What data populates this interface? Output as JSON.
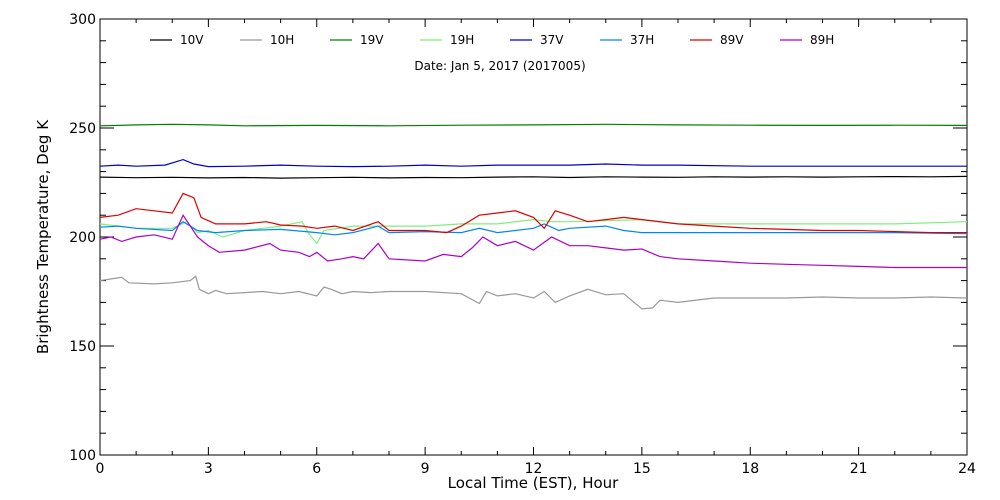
{
  "chart_data": {
    "type": "line",
    "title": "",
    "annotation": "Date: Jan  5, 2017 (2017005)",
    "xlabel": "Local Time (EST), Hour",
    "ylabel": "Brightness Temperature, Deg K",
    "xlim": [
      0,
      24
    ],
    "ylim": [
      100,
      300
    ],
    "xticks": [
      0,
      3,
      6,
      9,
      12,
      15,
      18,
      21,
      24
    ],
    "yticks": [
      100,
      150,
      200,
      250,
      300
    ],
    "grid": false,
    "legend_position": "top",
    "series": [
      {
        "name": "10V",
        "color": "#000000",
        "points": [
          [
            0,
            227.5
          ],
          [
            1,
            227.2
          ],
          [
            2,
            227.4
          ],
          [
            3,
            227.1
          ],
          [
            4,
            227.3
          ],
          [
            5,
            227.0
          ],
          [
            6,
            227.2
          ],
          [
            7,
            227.4
          ],
          [
            8,
            227.1
          ],
          [
            9,
            227.3
          ],
          [
            10,
            227.2
          ],
          [
            11,
            227.5
          ],
          [
            12,
            227.6
          ],
          [
            13,
            227.3
          ],
          [
            14,
            227.6
          ],
          [
            15,
            227.5
          ],
          [
            16,
            227.4
          ],
          [
            17,
            227.6
          ],
          [
            18,
            227.5
          ],
          [
            19,
            227.6
          ],
          [
            20,
            227.5
          ],
          [
            21,
            227.6
          ],
          [
            22,
            227.7
          ],
          [
            23,
            227.6
          ],
          [
            24,
            227.8
          ]
        ]
      },
      {
        "name": "10H",
        "color": "#999999",
        "points": [
          [
            0,
            180
          ],
          [
            0.6,
            181.5
          ],
          [
            0.8,
            179
          ],
          [
            1.5,
            178.5
          ],
          [
            2,
            179
          ],
          [
            2.5,
            180
          ],
          [
            2.65,
            182
          ],
          [
            2.75,
            176
          ],
          [
            3,
            174
          ],
          [
            3.2,
            175.5
          ],
          [
            3.5,
            174
          ],
          [
            4,
            174.5
          ],
          [
            4.5,
            175
          ],
          [
            5,
            174
          ],
          [
            5.5,
            175
          ],
          [
            6,
            173
          ],
          [
            6.2,
            177
          ],
          [
            6.4,
            176
          ],
          [
            6.7,
            174
          ],
          [
            7,
            175
          ],
          [
            7.5,
            174.5
          ],
          [
            8,
            175
          ],
          [
            9,
            175
          ],
          [
            10,
            174
          ],
          [
            10.5,
            169.5
          ],
          [
            10.7,
            175
          ],
          [
            11,
            173
          ],
          [
            11.5,
            174
          ],
          [
            12,
            172
          ],
          [
            12.3,
            175
          ],
          [
            12.6,
            170
          ],
          [
            13,
            173
          ],
          [
            13.5,
            176
          ],
          [
            14,
            173.5
          ],
          [
            14.5,
            174
          ],
          [
            15,
            167
          ],
          [
            15.3,
            167.5
          ],
          [
            15.5,
            171
          ],
          [
            16,
            170
          ],
          [
            17,
            172
          ],
          [
            18,
            172
          ],
          [
            19,
            172
          ],
          [
            20,
            172.5
          ],
          [
            21,
            172
          ],
          [
            22,
            172
          ],
          [
            23,
            172.5
          ],
          [
            24,
            172
          ]
        ]
      },
      {
        "name": "19V",
        "color": "#008000",
        "points": [
          [
            0,
            251
          ],
          [
            1,
            251.4
          ],
          [
            2,
            251.7
          ],
          [
            3,
            251.4
          ],
          [
            4,
            251
          ],
          [
            6,
            251.2
          ],
          [
            8,
            251
          ],
          [
            10,
            251.3
          ],
          [
            12,
            251.4
          ],
          [
            14,
            251.7
          ],
          [
            16,
            251.4
          ],
          [
            18,
            251.3
          ],
          [
            20,
            251.2
          ],
          [
            22,
            251.3
          ],
          [
            24,
            251.2
          ]
        ]
      },
      {
        "name": "19H",
        "color": "#80ee80",
        "points": [
          [
            0,
            206
          ],
          [
            1,
            204
          ],
          [
            2,
            204
          ],
          [
            2.4,
            207
          ],
          [
            2.7,
            202
          ],
          [
            3,
            203
          ],
          [
            3.4,
            200
          ],
          [
            4,
            203
          ],
          [
            5,
            205
          ],
          [
            5.6,
            207
          ],
          [
            5.8,
            201
          ],
          [
            6,
            197
          ],
          [
            6.2,
            203
          ],
          [
            7,
            205
          ],
          [
            8,
            205
          ],
          [
            9,
            205
          ],
          [
            10,
            206
          ],
          [
            11,
            206
          ],
          [
            12,
            208
          ],
          [
            12.5,
            207
          ],
          [
            13,
            207
          ],
          [
            14,
            207.5
          ],
          [
            15,
            208
          ],
          [
            16,
            206
          ],
          [
            17,
            206
          ],
          [
            18,
            206
          ],
          [
            20,
            206
          ],
          [
            22,
            206
          ],
          [
            24,
            207
          ]
        ]
      },
      {
        "name": "37V",
        "color": "#0000cc",
        "points": [
          [
            0,
            232.5
          ],
          [
            0.5,
            233
          ],
          [
            1,
            232.5
          ],
          [
            1.8,
            233
          ],
          [
            2.3,
            235.5
          ],
          [
            2.6,
            233.5
          ],
          [
            3,
            232.3
          ],
          [
            4,
            232.5
          ],
          [
            5,
            233
          ],
          [
            6,
            232.5
          ],
          [
            7,
            232.3
          ],
          [
            8,
            232.5
          ],
          [
            9,
            233
          ],
          [
            10,
            232.5
          ],
          [
            11,
            233
          ],
          [
            12,
            233
          ],
          [
            13,
            233
          ],
          [
            14,
            233.5
          ],
          [
            15,
            233
          ],
          [
            16,
            233
          ],
          [
            18,
            232.5
          ],
          [
            20,
            232.5
          ],
          [
            22,
            232.5
          ],
          [
            24,
            232.5
          ]
        ]
      },
      {
        "name": "37H",
        "color": "#0088ee",
        "points": [
          [
            0,
            204.5
          ],
          [
            0.5,
            205
          ],
          [
            1,
            204
          ],
          [
            2,
            203
          ],
          [
            2.3,
            207
          ],
          [
            2.7,
            203
          ],
          [
            3.2,
            202
          ],
          [
            4,
            203
          ],
          [
            5,
            203.5
          ],
          [
            6,
            202
          ],
          [
            6.5,
            201
          ],
          [
            7,
            202
          ],
          [
            7.7,
            205
          ],
          [
            8,
            202
          ],
          [
            9,
            202.5
          ],
          [
            10,
            202
          ],
          [
            10.5,
            204
          ],
          [
            11,
            202
          ],
          [
            12,
            204
          ],
          [
            12.3,
            206
          ],
          [
            12.7,
            203
          ],
          [
            13,
            204
          ],
          [
            14,
            205
          ],
          [
            14.5,
            203
          ],
          [
            15,
            202
          ],
          [
            16,
            202
          ],
          [
            18,
            202
          ],
          [
            20,
            202
          ],
          [
            22,
            202
          ],
          [
            24,
            201.5
          ]
        ]
      },
      {
        "name": "89V",
        "color": "#dd0000",
        "points": [
          [
            0,
            209
          ],
          [
            0.5,
            210
          ],
          [
            1,
            213
          ],
          [
            1.5,
            212
          ],
          [
            2,
            211
          ],
          [
            2.3,
            220
          ],
          [
            2.6,
            218
          ],
          [
            2.8,
            209
          ],
          [
            3.2,
            206
          ],
          [
            4,
            206
          ],
          [
            4.6,
            207
          ],
          [
            5,
            205.5
          ],
          [
            5.6,
            205
          ],
          [
            6,
            204
          ],
          [
            6.5,
            205
          ],
          [
            7,
            203
          ],
          [
            7.7,
            207
          ],
          [
            8,
            203
          ],
          [
            9,
            203
          ],
          [
            9.6,
            202
          ],
          [
            10,
            205
          ],
          [
            10.5,
            210
          ],
          [
            11,
            211
          ],
          [
            11.5,
            212
          ],
          [
            12,
            209
          ],
          [
            12.3,
            204
          ],
          [
            12.6,
            212
          ],
          [
            13,
            210
          ],
          [
            13.5,
            207
          ],
          [
            14,
            208
          ],
          [
            14.5,
            209
          ],
          [
            15,
            208
          ],
          [
            16,
            206
          ],
          [
            17,
            205
          ],
          [
            18,
            204
          ],
          [
            19,
            203.5
          ],
          [
            20,
            203
          ],
          [
            21,
            203
          ],
          [
            22,
            202.5
          ],
          [
            23,
            202
          ],
          [
            24,
            202
          ]
        ]
      },
      {
        "name": "89H",
        "color": "#aa00cc",
        "points": [
          [
            0,
            199
          ],
          [
            0.3,
            200
          ],
          [
            0.6,
            198
          ],
          [
            1,
            200
          ],
          [
            1.5,
            201
          ],
          [
            2,
            199
          ],
          [
            2.3,
            210
          ],
          [
            2.7,
            200
          ],
          [
            3,
            196
          ],
          [
            3.3,
            193
          ],
          [
            4,
            194
          ],
          [
            4.7,
            197
          ],
          [
            5,
            194
          ],
          [
            5.5,
            193
          ],
          [
            5.8,
            191
          ],
          [
            6,
            193
          ],
          [
            6.3,
            189
          ],
          [
            6.7,
            190
          ],
          [
            7,
            191
          ],
          [
            7.3,
            190
          ],
          [
            7.7,
            197
          ],
          [
            8,
            190
          ],
          [
            9,
            189
          ],
          [
            9.5,
            192
          ],
          [
            10,
            191
          ],
          [
            10.3,
            195
          ],
          [
            10.6,
            200
          ],
          [
            11,
            196
          ],
          [
            11.5,
            198
          ],
          [
            12,
            194
          ],
          [
            12.5,
            200
          ],
          [
            13,
            196
          ],
          [
            13.5,
            196
          ],
          [
            14,
            195
          ],
          [
            14.5,
            194
          ],
          [
            15,
            194.5
          ],
          [
            15.5,
            191
          ],
          [
            16,
            190
          ],
          [
            17,
            189
          ],
          [
            18,
            188
          ],
          [
            19,
            187.5
          ],
          [
            20,
            187
          ],
          [
            21,
            186.5
          ],
          [
            22,
            186
          ],
          [
            23,
            186
          ],
          [
            24,
            186
          ]
        ]
      }
    ]
  }
}
